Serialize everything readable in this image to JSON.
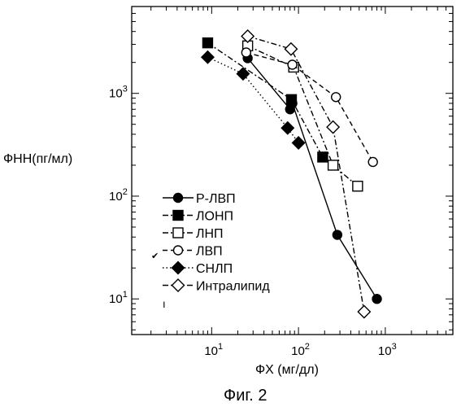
{
  "chart_data": {
    "type": "scatter",
    "xlabel": "ФХ (мг/дл)",
    "ylabel": "ФНН(пг/мл)",
    "caption": "Фиг. 2",
    "x_scale": "log",
    "y_scale": "log",
    "xlim": [
      1.2,
      6000
    ],
    "ylim": [
      4.5,
      7000
    ],
    "x_ticks": [
      {
        "value": 10,
        "base": "10",
        "exp": "1"
      },
      {
        "value": 100,
        "base": "10",
        "exp": "2"
      },
      {
        "value": 1000,
        "base": "10",
        "exp": "3"
      }
    ],
    "y_ticks": [
      {
        "value": 10,
        "base": "10",
        "exp": "1"
      },
      {
        "value": 100,
        "base": "10",
        "exp": "2"
      },
      {
        "value": 1000,
        "base": "10",
        "exp": "3"
      }
    ],
    "grid": false,
    "legend_position": "lower-left",
    "series": [
      {
        "name": "Р-ЛВП",
        "marker": "circle",
        "fill": "filled",
        "line": "solid",
        "points": [
          [
            26,
            2200
          ],
          [
            80,
            700
          ],
          [
            85,
            800
          ],
          [
            280,
            42
          ],
          [
            800,
            10
          ]
        ]
      },
      {
        "name": "ЛОНП",
        "marker": "square",
        "fill": "filled",
        "line": "dashdot",
        "points": [
          [
            9,
            3100
          ],
          [
            83,
            870
          ],
          [
            190,
            240
          ]
        ]
      },
      {
        "name": "ЛНП",
        "marker": "square",
        "fill": "open",
        "line": "dashdot",
        "points": [
          [
            26,
            2900
          ],
          [
            88,
            1800
          ],
          [
            250,
            200
          ],
          [
            480,
            125
          ]
        ]
      },
      {
        "name": "ЛВП",
        "marker": "circle",
        "fill": "open",
        "line": "dashed",
        "points": [
          [
            25,
            2500
          ],
          [
            85,
            1900
          ],
          [
            270,
            920
          ],
          [
            720,
            215
          ]
        ]
      },
      {
        "name": "СНЛП",
        "marker": "diamond",
        "fill": "filled",
        "line": "dotted",
        "points": [
          [
            9,
            2250
          ],
          [
            23,
            1550
          ],
          [
            75,
            460
          ],
          [
            100,
            330
          ]
        ]
      },
      {
        "name": "Интралипид",
        "marker": "diamond",
        "fill": "open",
        "line": "dashdot",
        "points": [
          [
            26,
            3600
          ],
          [
            82,
            2700
          ],
          [
            250,
            470
          ],
          [
            570,
            7.5
          ]
        ]
      }
    ]
  }
}
